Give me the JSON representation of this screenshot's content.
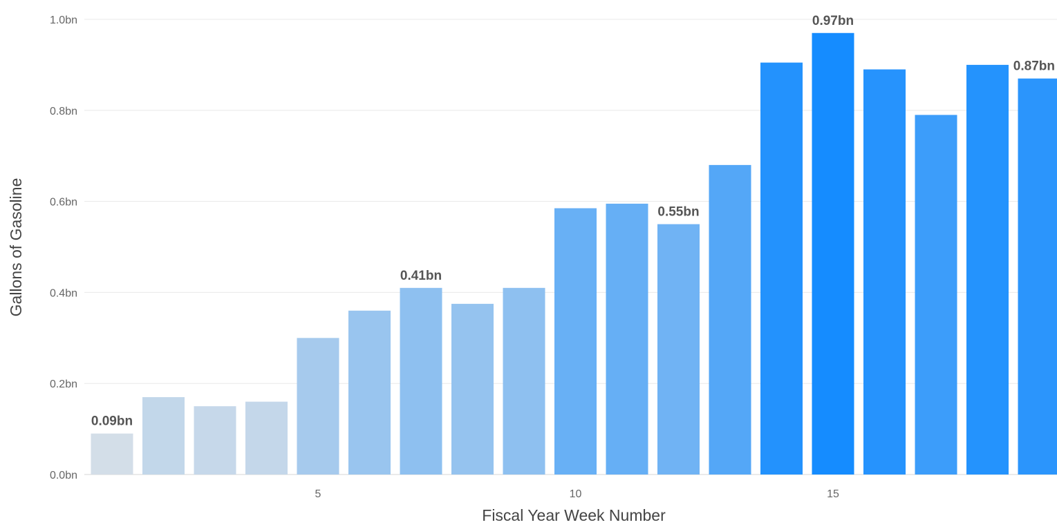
{
  "chart_data": {
    "type": "bar",
    "title": "",
    "xlabel": "Fiscal Year Week Number",
    "ylabel": "Gallons of Gasoline",
    "x": [
      1,
      2,
      3,
      4,
      5,
      6,
      7,
      8,
      9,
      10,
      11,
      12,
      13,
      14,
      15,
      16,
      17,
      18,
      19
    ],
    "values": [
      0.09,
      0.17,
      0.15,
      0.16,
      0.3,
      0.36,
      0.41,
      0.375,
      0.41,
      0.585,
      0.595,
      0.55,
      0.68,
      0.905,
      0.97,
      0.89,
      0.79,
      0.9,
      0.87
    ],
    "unit_suffix": "bn",
    "ylim": [
      0,
      1.0
    ],
    "yticks": [
      0.0,
      0.2,
      0.4,
      0.6,
      0.8,
      1.0
    ],
    "ytick_labels": [
      "0.0bn",
      "0.2bn",
      "0.4bn",
      "0.6bn",
      "0.8bn",
      "1.0bn"
    ],
    "xticks": [
      5,
      10,
      15
    ],
    "xtick_labels": [
      "5",
      "10",
      "15"
    ],
    "data_labels": [
      {
        "x": 1,
        "text": "0.09bn"
      },
      {
        "x": 7,
        "text": "0.41bn"
      },
      {
        "x": 12,
        "text": "0.55bn"
      },
      {
        "x": 15,
        "text": "0.97bn"
      },
      {
        "x": 19,
        "text": "0.87bn"
      }
    ],
    "grid": true,
    "legend": "none",
    "colors": {
      "low": "#d3dee8",
      "high": "#158cff",
      "grid": "#e8e8e8",
      "tick_text": "#666666",
      "label_text": "#555555"
    }
  }
}
